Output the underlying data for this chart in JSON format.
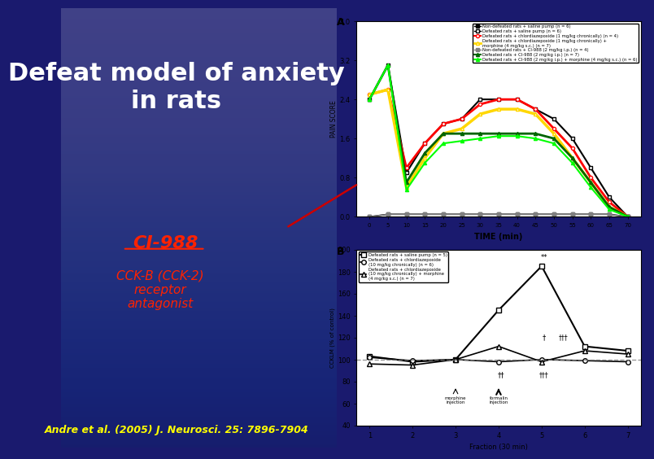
{
  "title": "Defeat model of anxiety\nin rats",
  "title_color": "#FFFFFF",
  "title_fontsize": 22,
  "ci988_label": "CI-988",
  "ci988_sub": "CCK-B (CCK-2)\nreceptor\nantagonist",
  "ci988_color": "#FF2200",
  "citation": "Andre et al. (2005) J. Neurosci. 25: 7896-7904",
  "citation_color": "#FFFF00",
  "slide_bg": "#1a1a6e",
  "arrow_color": "#CC0000",
  "time_x": [
    0,
    5,
    10,
    15,
    20,
    25,
    30,
    35,
    40,
    45,
    50,
    55,
    60,
    65,
    70
  ],
  "pain_score_ylabel": "PAIN SCORE",
  "time_xlabel": "TIME (min)",
  "pain_ylim": [
    0.0,
    4.0
  ],
  "pain_yticks": [
    0.0,
    0.8,
    1.6,
    2.4,
    3.2,
    4.0
  ],
  "series_nondefeated_saline": [
    0.0,
    0.05,
    0.05,
    0.05,
    0.05,
    0.05,
    0.05,
    0.05,
    0.05,
    0.05,
    0.05,
    0.05,
    0.05,
    0.05,
    0.0
  ],
  "series_defeated_saline": [
    2.4,
    3.1,
    0.9,
    1.5,
    1.9,
    2.0,
    2.4,
    2.4,
    2.4,
    2.2,
    2.0,
    1.6,
    1.0,
    0.4,
    0.0
  ],
  "series_defeated_chlor": [
    2.5,
    2.6,
    1.0,
    1.5,
    1.9,
    2.0,
    2.3,
    2.4,
    2.4,
    2.2,
    1.8,
    1.4,
    0.8,
    0.3,
    0.0
  ],
  "series_defeated_chlor_morph": [
    2.5,
    2.6,
    0.6,
    1.2,
    1.7,
    1.8,
    2.1,
    2.2,
    2.2,
    2.1,
    1.7,
    1.2,
    0.7,
    0.2,
    0.0
  ],
  "series_nondefeated_CI988": [
    0.0,
    0.05,
    0.05,
    0.05,
    0.05,
    0.05,
    0.05,
    0.05,
    0.05,
    0.05,
    0.05,
    0.05,
    0.05,
    0.05,
    0.0
  ],
  "series_defeated_CI988": [
    2.4,
    3.1,
    0.7,
    1.3,
    1.7,
    1.7,
    1.7,
    1.7,
    1.7,
    1.7,
    1.6,
    1.2,
    0.7,
    0.2,
    0.0
  ],
  "series_defeated_CI988_morph": [
    2.4,
    3.1,
    0.55,
    1.1,
    1.5,
    1.55,
    1.6,
    1.65,
    1.65,
    1.6,
    1.5,
    1.1,
    0.6,
    0.15,
    0.0
  ],
  "fractions": [
    1,
    2,
    3,
    4,
    5,
    6,
    7
  ],
  "ccklm_ylabel": "CCKLM (% of control)",
  "fraction_xlabel": "Fraction (30 min)",
  "ccklm_ylim": [
    40,
    200
  ],
  "ccklm_yticks": [
    40,
    60,
    80,
    100,
    120,
    140,
    160,
    180,
    200
  ],
  "series_ccklm_saline": [
    103,
    98,
    100,
    145,
    185,
    112,
    108
  ],
  "series_ccklm_chlor": [
    102,
    99,
    100,
    98,
    100,
    99,
    98
  ],
  "series_ccklm_chlor_morph": [
    96,
    95,
    100,
    112,
    98,
    108,
    105
  ]
}
